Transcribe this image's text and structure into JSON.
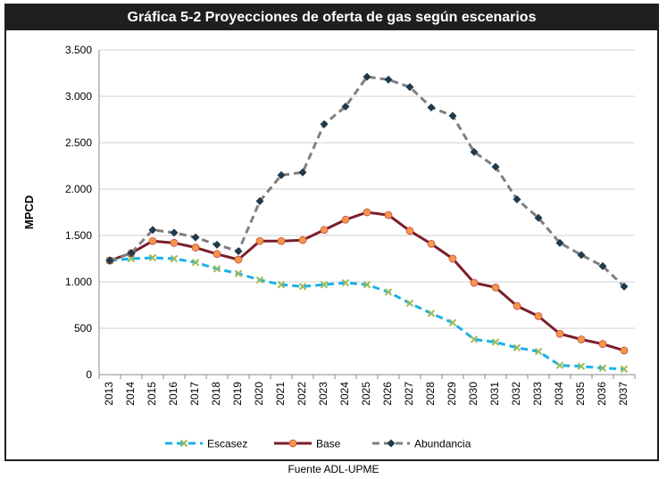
{
  "title": "Gráfica 5-2 Proyecciones de oferta de gas según escenarios",
  "source": "Fuente ADL-UPME",
  "chart_data": {
    "type": "line",
    "ylabel": "MPCD",
    "xlabel": "",
    "ylim": [
      0,
      3500
    ],
    "yticks": [
      0,
      500,
      1000,
      1500,
      2000,
      2500,
      3000,
      3500
    ],
    "ytick_labels": [
      "0",
      "500",
      "1.000",
      "1.500",
      "2.000",
      "2.500",
      "3.000",
      "3.500"
    ],
    "grid": true,
    "legend": "bottom",
    "categories": [
      "2013",
      "2014",
      "2015",
      "2016",
      "2017",
      "2018",
      "2019",
      "2020",
      "2021",
      "2022",
      "2023",
      "2024",
      "2025",
      "2026",
      "2027",
      "2028",
      "2029",
      "2030",
      "2031",
      "2032",
      "2033",
      "2034",
      "2035",
      "2036",
      "2037"
    ],
    "series": [
      {
        "name": "Escasez",
        "color": "#1ab2e8",
        "marker_color": "#9bbb59",
        "marker": "x",
        "dash": "dash",
        "values": [
          1230,
          1250,
          1260,
          1250,
          1210,
          1140,
          1090,
          1020,
          970,
          950,
          970,
          990,
          970,
          890,
          770,
          660,
          560,
          380,
          350,
          290,
          250,
          100,
          90,
          70,
          60
        ]
      },
      {
        "name": "Base",
        "color": "#7b1f2b",
        "marker_color": "#f79646",
        "marker": "circle",
        "dash": "solid",
        "values": [
          1230,
          1310,
          1440,
          1420,
          1370,
          1300,
          1240,
          1440,
          1440,
          1450,
          1560,
          1670,
          1750,
          1720,
          1550,
          1410,
          1250,
          990,
          940,
          740,
          630,
          440,
          380,
          330,
          260
        ]
      },
      {
        "name": "Abundancia",
        "color": "#7f7f7f",
        "marker_color": "#1f3a4d",
        "marker": "diamond",
        "dash": "dash",
        "values": [
          1230,
          1310,
          1560,
          1530,
          1480,
          1400,
          1330,
          1870,
          2150,
          2180,
          2700,
          2890,
          3210,
          3180,
          3100,
          2880,
          2790,
          2400,
          2240,
          1890,
          1690,
          1420,
          1290,
          1170,
          950
        ]
      }
    ]
  }
}
